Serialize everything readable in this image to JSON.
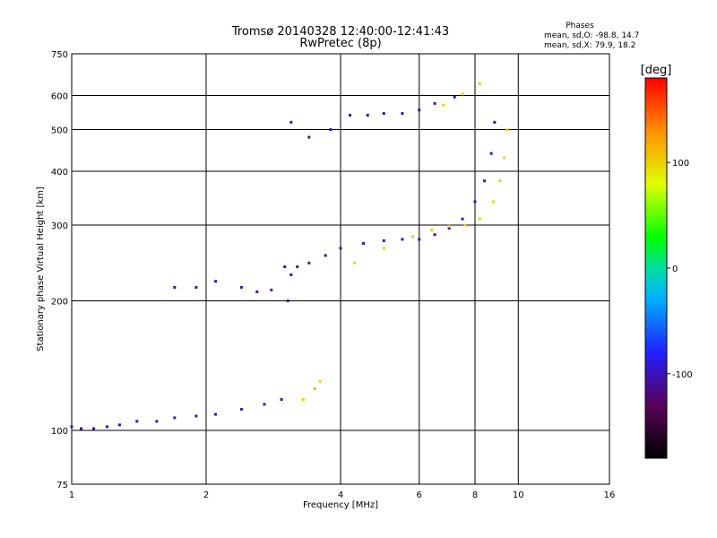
{
  "chart_data": {
    "type": "scatter",
    "title": "Tromsø 20140328 12:40:00-12:41:43",
    "subtitle": "RwPretec (8p)",
    "xlabel": "Frequency [MHz]",
    "ylabel": "Stationary phase Virtual Height [km]",
    "x_scale": "log",
    "y_scale": "log",
    "xlim": [
      1,
      16
    ],
    "ylim": [
      75,
      750
    ],
    "grid": true,
    "xticks": [
      1,
      2,
      4,
      6,
      8,
      10,
      16
    ],
    "xtick_labels": [
      "1",
      "2",
      "4",
      "6",
      "8",
      "10",
      "16"
    ],
    "yticks": [
      75,
      100,
      200,
      300,
      400,
      500,
      600,
      750
    ],
    "ytick_labels": [
      "75",
      "100",
      "200",
      "300",
      "400",
      "500",
      "600",
      "750"
    ],
    "stats": {
      "heading": "Phases",
      "line_o": "mean, sd,O: -98.8, 14.7",
      "line_x": "mean, sd,X:  79.9, 18.2"
    },
    "colorbar": {
      "label": "[deg]",
      "ticks": [
        "100",
        "0",
        "-100"
      ],
      "tick_values": [
        100,
        0,
        -100
      ],
      "range": [
        -180,
        180
      ]
    },
    "series": [
      {
        "values": [
          {
            "x": 1.0,
            "y": 102,
            "phase": -100
          },
          {
            "x": 1.05,
            "y": 101,
            "phase": -105
          },
          {
            "x": 1.12,
            "y": 101,
            "phase": -100
          },
          {
            "x": 1.2,
            "y": 102,
            "phase": -95
          },
          {
            "x": 1.28,
            "y": 103,
            "phase": -100
          },
          {
            "x": 1.4,
            "y": 105,
            "phase": -100
          },
          {
            "x": 1.55,
            "y": 105,
            "phase": -105
          },
          {
            "x": 1.7,
            "y": 107,
            "phase": -100
          },
          {
            "x": 1.9,
            "y": 108,
            "phase": -95
          },
          {
            "x": 2.1,
            "y": 109,
            "phase": -100
          },
          {
            "x": 2.4,
            "y": 112,
            "phase": -100
          },
          {
            "x": 2.7,
            "y": 115,
            "phase": -105
          },
          {
            "x": 2.95,
            "y": 118,
            "phase": -100
          },
          {
            "x": 3.05,
            "y": 200,
            "phase": -110
          },
          {
            "x": 3.1,
            "y": 230,
            "phase": -115
          },
          {
            "x": 3.2,
            "y": 240,
            "phase": -105
          },
          {
            "x": 3.4,
            "y": 245,
            "phase": -100
          },
          {
            "x": 3.7,
            "y": 255,
            "phase": -100
          },
          {
            "x": 4.0,
            "y": 265,
            "phase": -100
          },
          {
            "x": 4.5,
            "y": 272,
            "phase": -100
          },
          {
            "x": 5.0,
            "y": 276,
            "phase": -100
          },
          {
            "x": 5.5,
            "y": 278,
            "phase": -100
          },
          {
            "x": 6.0,
            "y": 278,
            "phase": -100
          },
          {
            "x": 6.5,
            "y": 285,
            "phase": -100
          },
          {
            "x": 7.0,
            "y": 295,
            "phase": -100
          },
          {
            "x": 7.5,
            "y": 310,
            "phase": -100
          },
          {
            "x": 8.0,
            "y": 340,
            "phase": -100
          },
          {
            "x": 8.4,
            "y": 380,
            "phase": -100
          },
          {
            "x": 8.7,
            "y": 440,
            "phase": -100
          },
          {
            "x": 8.85,
            "y": 520,
            "phase": -105
          }
        ]
      },
      {
        "values": [
          {
            "x": 3.1,
            "y": 520,
            "phase": -100
          },
          {
            "x": 3.4,
            "y": 480,
            "phase": -105
          },
          {
            "x": 3.8,
            "y": 500,
            "phase": -100
          },
          {
            "x": 4.2,
            "y": 540,
            "phase": -100
          },
          {
            "x": 4.6,
            "y": 540,
            "phase": -100
          },
          {
            "x": 5.0,
            "y": 545,
            "phase": -105
          },
          {
            "x": 5.5,
            "y": 545,
            "phase": -100
          },
          {
            "x": 6.0,
            "y": 555,
            "phase": -100
          },
          {
            "x": 6.5,
            "y": 575,
            "phase": -100
          },
          {
            "x": 7.2,
            "y": 595,
            "phase": -100
          }
        ]
      },
      {
        "values": [
          {
            "x": 1.7,
            "y": 215,
            "phase": -100
          },
          {
            "x": 1.9,
            "y": 215,
            "phase": -105
          },
          {
            "x": 2.1,
            "y": 222,
            "phase": -100
          },
          {
            "x": 2.4,
            "y": 215,
            "phase": -100
          },
          {
            "x": 2.6,
            "y": 210,
            "phase": -105
          },
          {
            "x": 2.8,
            "y": 212,
            "phase": -100
          },
          {
            "x": 3.0,
            "y": 240,
            "phase": -100
          }
        ]
      },
      {
        "values": [
          {
            "x": 3.3,
            "y": 118,
            "phase": 100
          },
          {
            "x": 3.5,
            "y": 125,
            "phase": 110
          },
          {
            "x": 3.6,
            "y": 130,
            "phase": 100
          },
          {
            "x": 4.3,
            "y": 245,
            "phase": 100
          },
          {
            "x": 5.0,
            "y": 265,
            "phase": 100
          },
          {
            "x": 5.8,
            "y": 282,
            "phase": 100
          },
          {
            "x": 6.4,
            "y": 292,
            "phase": 100
          },
          {
            "x": 7.0,
            "y": 298,
            "phase": 100
          },
          {
            "x": 7.6,
            "y": 300,
            "phase": 100
          },
          {
            "x": 8.2,
            "y": 310,
            "phase": 100
          },
          {
            "x": 8.8,
            "y": 340,
            "phase": 100
          },
          {
            "x": 9.1,
            "y": 380,
            "phase": 100
          },
          {
            "x": 9.3,
            "y": 430,
            "phase": 100
          },
          {
            "x": 9.45,
            "y": 500,
            "phase": 100
          },
          {
            "x": 6.8,
            "y": 570,
            "phase": 100
          },
          {
            "x": 7.5,
            "y": 605,
            "phase": 100
          },
          {
            "x": 8.2,
            "y": 640,
            "phase": 100
          }
        ]
      }
    ]
  }
}
